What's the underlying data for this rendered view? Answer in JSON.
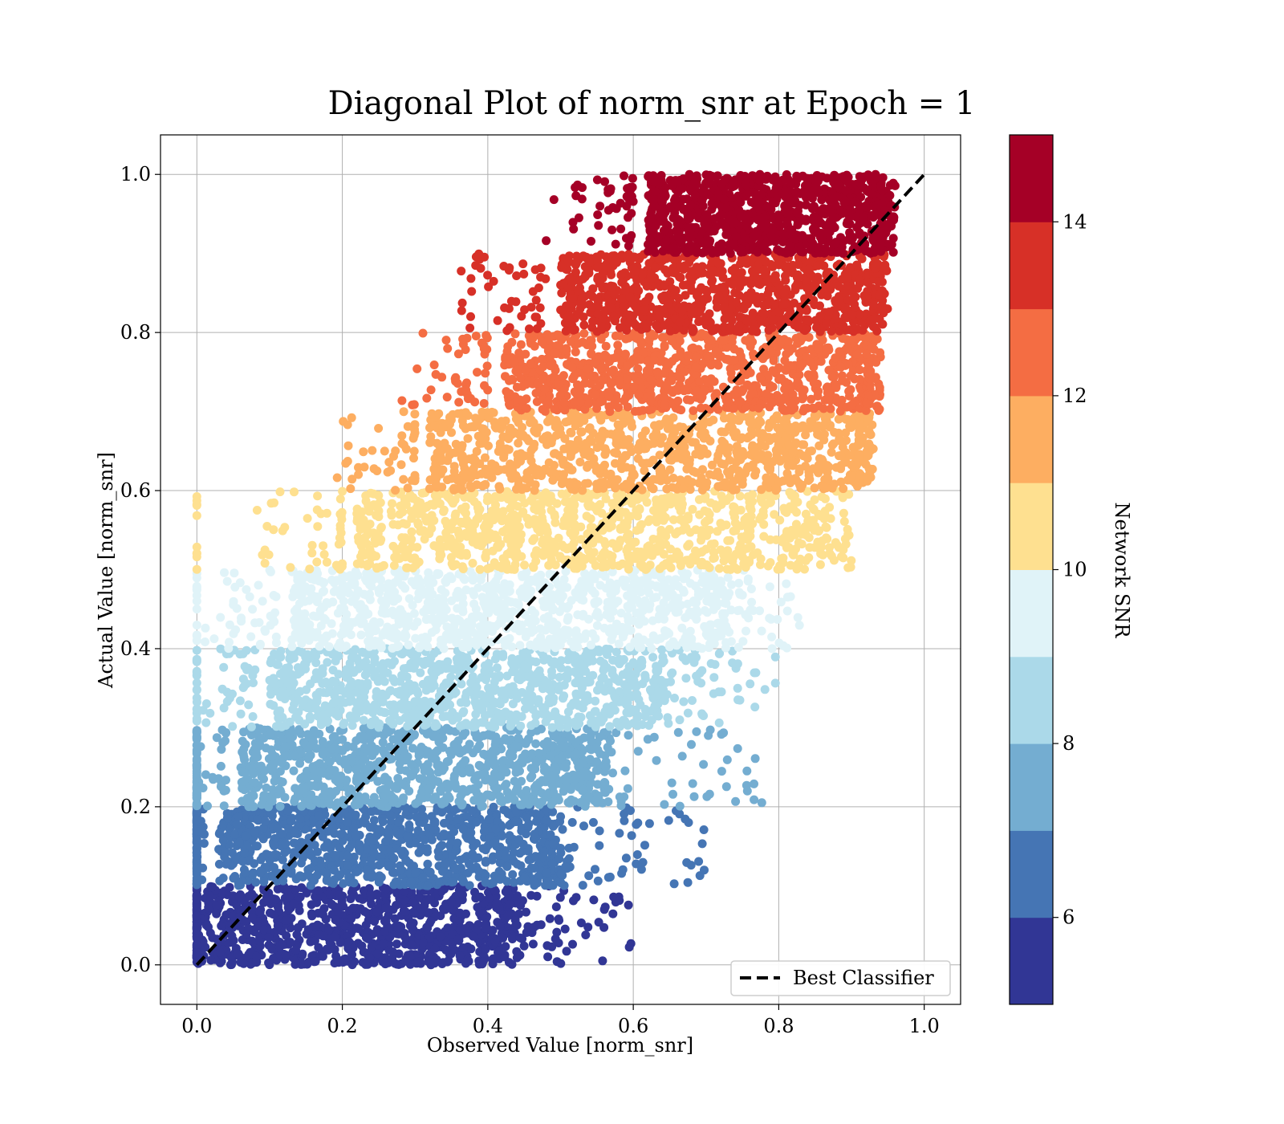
{
  "chart_data": {
    "type": "scatter",
    "title": "Diagonal Plot of norm_snr at Epoch = 1",
    "xlabel": "Observed Value [norm_snr]",
    "ylabel": "Actual Value [norm_snr]",
    "xlim": [
      -0.05,
      1.05
    ],
    "ylim": [
      -0.05,
      1.05
    ],
    "xticks": [
      0.0,
      0.2,
      0.4,
      0.6,
      0.8,
      1.0
    ],
    "yticks": [
      0.0,
      0.2,
      0.4,
      0.6,
      0.8,
      1.0
    ],
    "tick_labels": [
      "0.0",
      "0.2",
      "0.4",
      "0.6",
      "0.8",
      "1.0"
    ],
    "grid": true,
    "legend": {
      "position": "lower-right",
      "entries": [
        "Best Classifier"
      ]
    },
    "reference_line": {
      "name": "Best Classifier",
      "from": [
        0.0,
        0.0
      ],
      "to": [
        1.0,
        1.0
      ],
      "style": "dashed",
      "color": "#000000"
    },
    "colorbar": {
      "label": "Network SNR",
      "range": [
        5,
        15
      ],
      "ticks": [
        6,
        8,
        10,
        12,
        14
      ],
      "tick_labels": [
        "6",
        "8",
        "10",
        "12",
        "14"
      ],
      "colors": [
        "#313695",
        "#4575b4",
        "#74add1",
        "#abd9e9",
        "#e0f3f8",
        "#fee090",
        "#fdae61",
        "#f46d43",
        "#d73027",
        "#a50026"
      ]
    },
    "bands": [
      {
        "y_range": [
          0.0,
          0.1
        ],
        "x_core": [
          0.0,
          0.44
        ],
        "x_spread": [
          0.56,
          0.6
        ],
        "snr_range": [
          5,
          6
        ]
      },
      {
        "y_range": [
          0.1,
          0.2
        ],
        "x_core": [
          0.03,
          0.5
        ],
        "x_spread": [
          0.6,
          0.7
        ],
        "snr_range": [
          6,
          7
        ]
      },
      {
        "y_range": [
          0.2,
          0.3
        ],
        "x_core": [
          0.06,
          0.56
        ],
        "x_spread": [
          0.65,
          0.78
        ],
        "snr_range": [
          7,
          8
        ]
      },
      {
        "y_range": [
          0.3,
          0.4
        ],
        "x_core": [
          0.1,
          0.64
        ],
        "x_spread": [
          0.72,
          0.8
        ],
        "snr_range": [
          8,
          9
        ]
      },
      {
        "y_range": [
          0.4,
          0.5
        ],
        "x_core": [
          0.13,
          0.72
        ],
        "x_spread": [
          0.77,
          0.83
        ],
        "snr_range": [
          9,
          10
        ]
      },
      {
        "y_range": [
          0.5,
          0.6
        ],
        "x_core": [
          0.22,
          0.84
        ],
        "x_spread": [
          0.86,
          0.9
        ],
        "snr_range": [
          10,
          11
        ]
      },
      {
        "y_range": [
          0.6,
          0.7
        ],
        "x_core": [
          0.32,
          0.91
        ],
        "x_spread": [
          0.92,
          0.93
        ],
        "snr_range": [
          11,
          12
        ]
      },
      {
        "y_range": [
          0.7,
          0.8
        ],
        "x_core": [
          0.42,
          0.92
        ],
        "x_spread": [
          0.93,
          0.94
        ],
        "snr_range": [
          12,
          13
        ]
      },
      {
        "y_range": [
          0.8,
          0.9
        ],
        "x_core": [
          0.5,
          0.93
        ],
        "x_spread": [
          0.94,
          0.95
        ],
        "snr_range": [
          13,
          14
        ]
      },
      {
        "y_range": [
          0.9,
          1.0
        ],
        "x_core": [
          0.62,
          0.94
        ],
        "x_spread": [
          0.95,
          0.96
        ],
        "snr_range": [
          14,
          15
        ]
      }
    ]
  }
}
